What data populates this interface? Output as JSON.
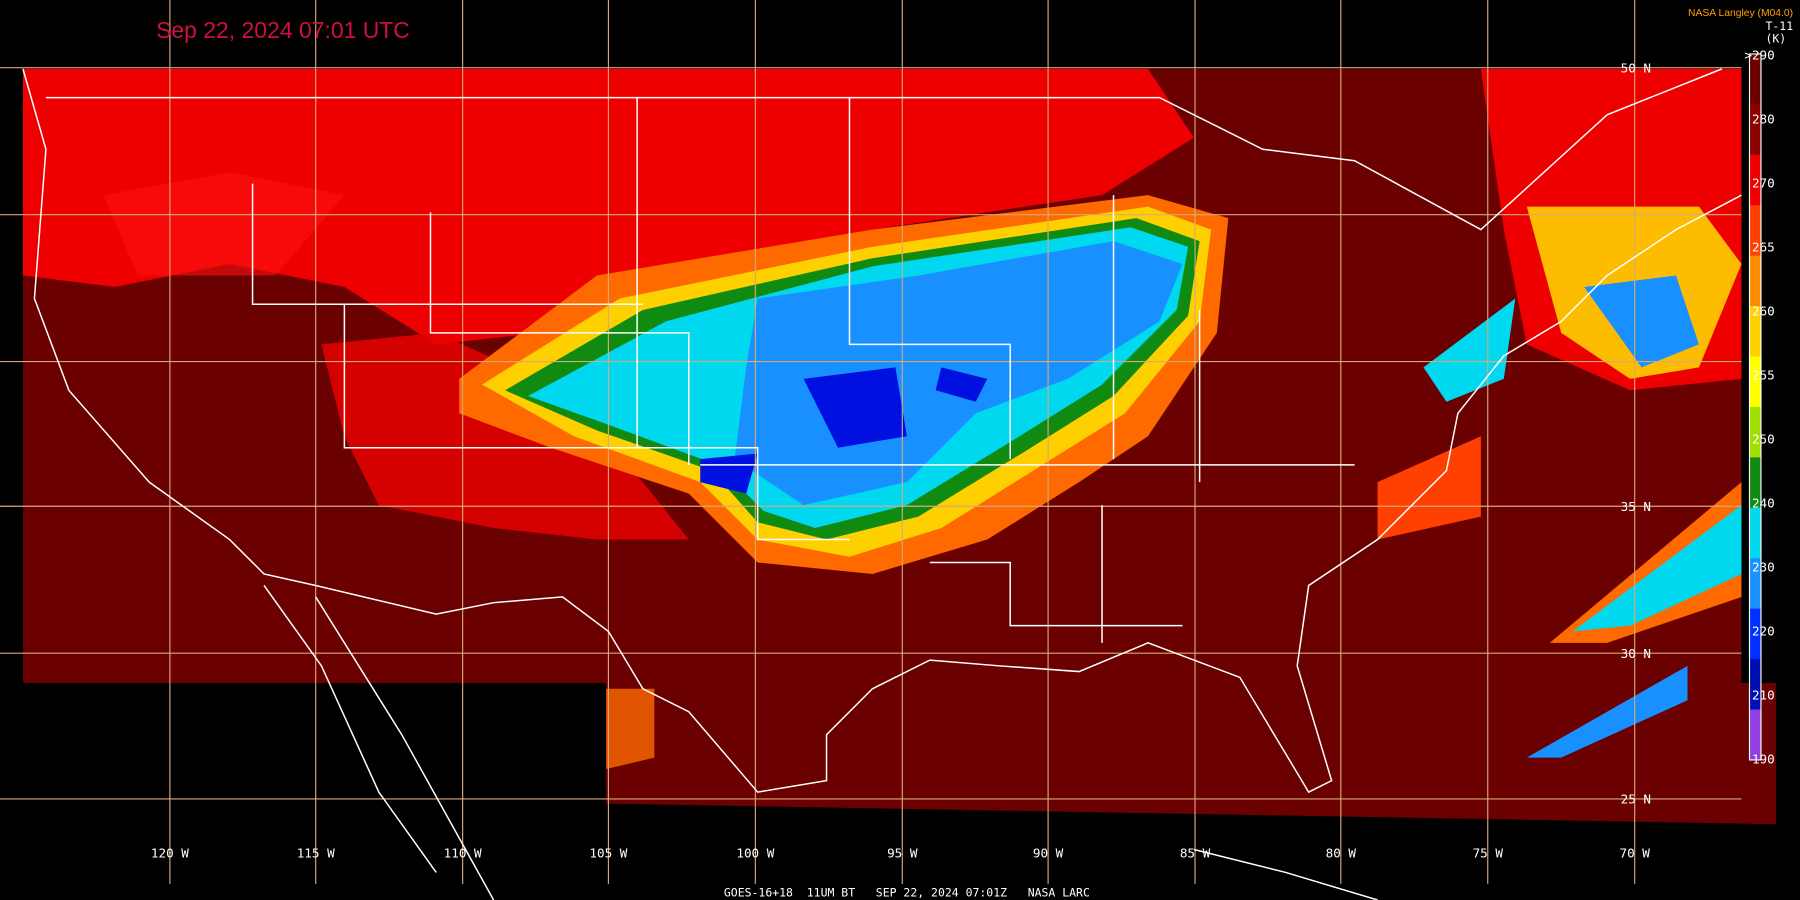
{
  "title": "Sep 22, 2024 07:01 UTC",
  "credit": "NASA Langley (M04.0)",
  "colorbar": {
    "channel": "T-11",
    "unit": "(K)",
    "labels": [
      ">290",
      "280",
      "270",
      "265",
      "260",
      "255",
      "250",
      "240",
      "230",
      "220",
      "210",
      "190"
    ]
  },
  "longitude_labels": [
    "120 W",
    "115 W",
    "110 W",
    "105 W",
    "100 W",
    "95 W",
    "90 W",
    "85 W",
    "80 W",
    "75 W",
    "70 W"
  ],
  "latitude_labels": [
    "50 N",
    "35 N",
    "30 N",
    "25 N"
  ],
  "footer": "GOES-16+18  11UM BT   SEP 22, 2024 07:01Z   NASA LARC"
}
